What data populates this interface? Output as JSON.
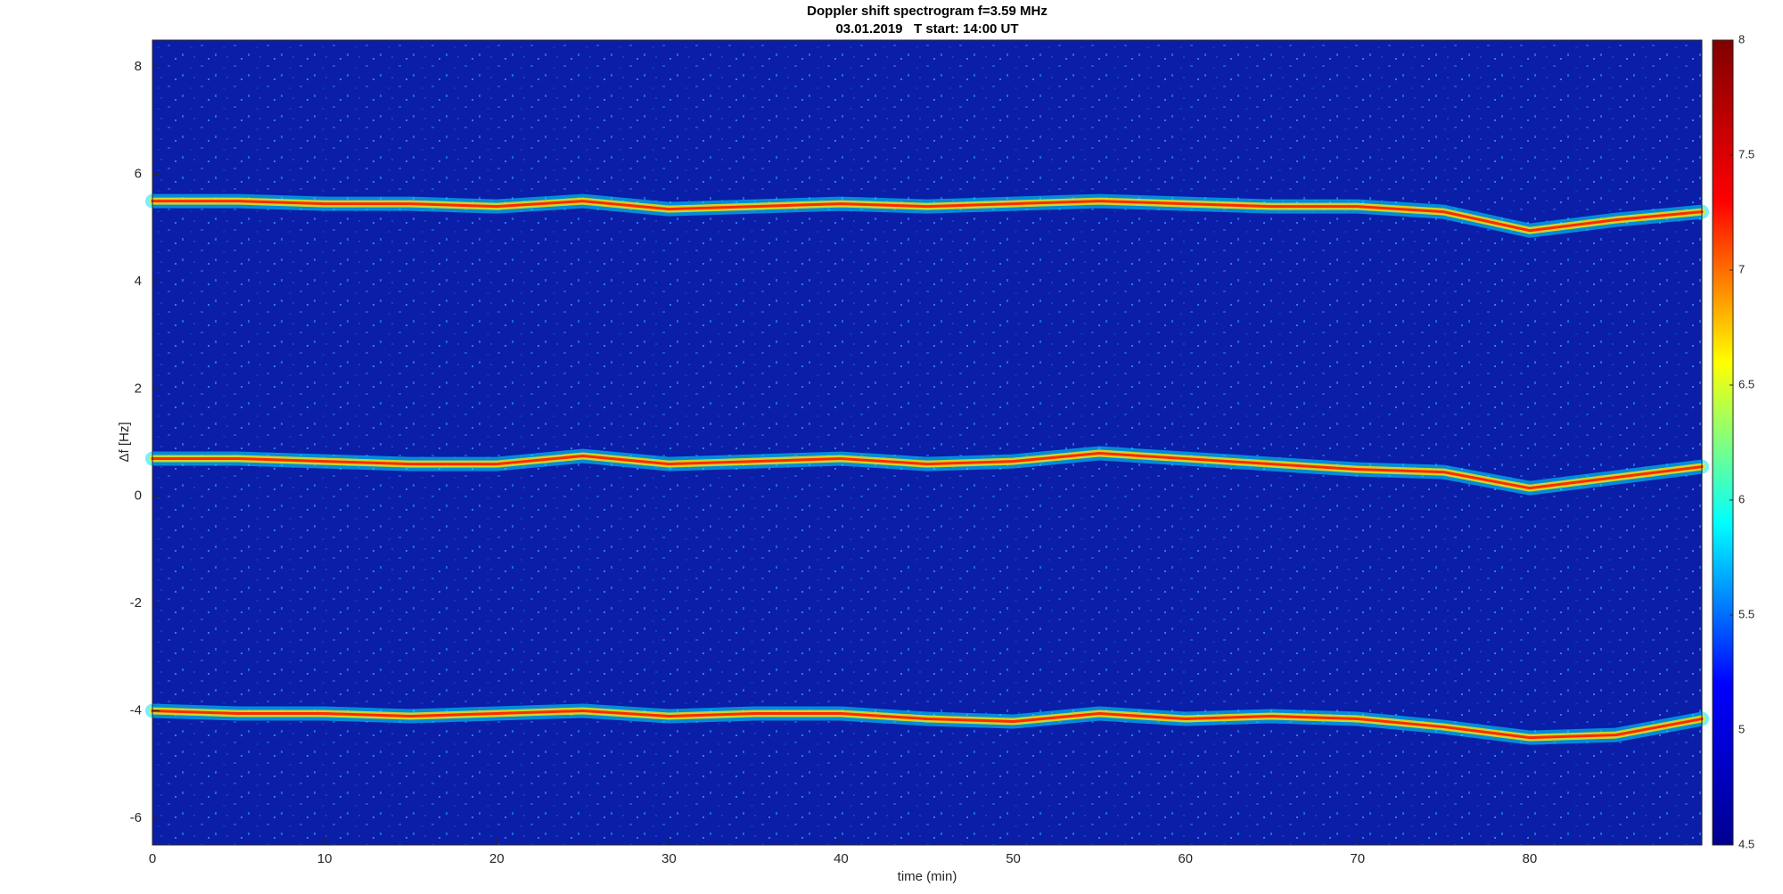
{
  "chart_data": {
    "type": "spectrogram",
    "title": "Doppler shift spectrogram f=3.59 MHz",
    "subtitle": "03.01.2019   T start: 14:00 UT",
    "xlabel": "time (min)",
    "ylabel": "Δf [Hz]",
    "x": [
      0,
      5,
      10,
      15,
      20,
      25,
      30,
      35,
      40,
      45,
      50,
      55,
      60,
      65,
      70,
      75,
      80,
      85,
      90
    ],
    "series": [
      {
        "color": "#ff2a00",
        "values": [
          5.5,
          5.5,
          5.45,
          5.45,
          5.4,
          5.5,
          5.35,
          5.4,
          5.45,
          5.4,
          5.45,
          5.5,
          5.45,
          5.4,
          5.4,
          5.3,
          4.95,
          5.15,
          5.3
        ]
      },
      {
        "color": "#ff2a00",
        "values": [
          0.7,
          0.7,
          0.65,
          0.6,
          0.6,
          0.75,
          0.6,
          0.65,
          0.7,
          0.6,
          0.65,
          0.8,
          0.7,
          0.6,
          0.5,
          0.45,
          0.15,
          0.35,
          0.55
        ]
      },
      {
        "color": "#ff2a00",
        "values": [
          -4.0,
          -4.05,
          -4.05,
          -4.1,
          -4.05,
          -4.0,
          -4.1,
          -4.05,
          -4.05,
          -4.15,
          -4.2,
          -4.05,
          -4.15,
          -4.1,
          -4.15,
          -4.3,
          -4.5,
          -4.45,
          -4.15
        ]
      }
    ],
    "xlim": [
      0,
      90
    ],
    "xticks": [
      0,
      10,
      20,
      30,
      40,
      50,
      60,
      70,
      80
    ],
    "ylim": [
      -6.5,
      8.5
    ],
    "yticks": [
      -6,
      -4,
      -2,
      0,
      2,
      4,
      6,
      8
    ],
    "clim": [
      4.5,
      8
    ],
    "cticks": [
      4.5,
      5,
      5.5,
      6,
      6.5,
      7,
      7.5,
      8
    ],
    "colormap": [
      "#00008f",
      "#0000ff",
      "#00ffff",
      "#ffff00",
      "#ff0000",
      "#800000"
    ]
  }
}
